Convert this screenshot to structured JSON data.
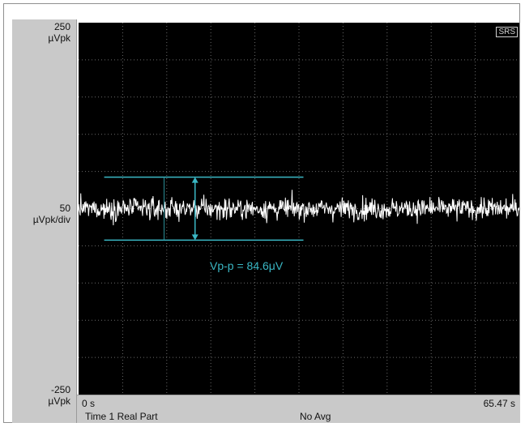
{
  "chart_data": {
    "type": "line",
    "title": "",
    "xlabel": "",
    "ylabel": "",
    "x_start_label": "0 s",
    "x_end_label": "65.47 s",
    "xlim": [
      0,
      65.47
    ],
    "ylim": [
      -250,
      250
    ],
    "y_top_value": "250",
    "y_top_unit": "µVpk",
    "y_scale_value": "50",
    "y_scale_unit": "µVpk/div",
    "y_bottom_value": "-250",
    "y_bottom_unit": "µVpk",
    "grid": true,
    "grid_divisions": {
      "x": 10,
      "y": 10
    },
    "series": [
      {
        "color": "#ffffff",
        "mean": 0,
        "peak_to_peak": 84.6,
        "samples": 800
      }
    ],
    "annotation": {
      "text": "Vp-p = 84.6μV",
      "upper": 42.3,
      "lower": -42.3,
      "x_start": 3.8,
      "x_end": 33.4,
      "x_arrow": 17.3,
      "x_tick": 12.7,
      "color": "#3ab7c4"
    },
    "badge": "SRS",
    "footer_fragments": [
      "Time 1 Real Part",
      "No Avg"
    ]
  }
}
